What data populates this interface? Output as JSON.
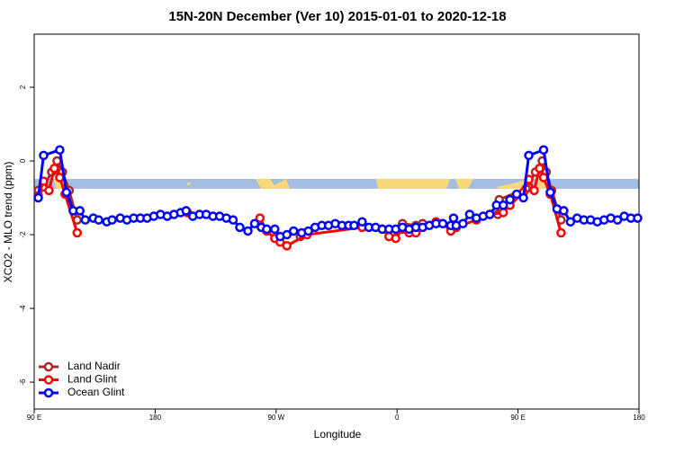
{
  "chart_data": {
    "type": "line",
    "title": "15N-20N December (Ver 10)   2015-01-01 to 2020-12-18",
    "x_label": "Longitude",
    "y_label": "XCO2 - MLO trend (ppm)",
    "xlim": [
      90,
      540
    ],
    "xticks": [
      {
        "value": 90,
        "label": "90 E"
      },
      {
        "value": 180,
        "label": "180"
      },
      {
        "value": 270,
        "label": "90 W"
      },
      {
        "value": 360,
        "label": "0"
      },
      {
        "value": 450,
        "label": "90 E"
      },
      {
        "value": 540,
        "label": "180"
      }
    ],
    "ylim": [
      -6.73,
      3.44
    ],
    "yticks": [
      2,
      0,
      -2,
      -4,
      -6
    ],
    "legend": "bottom-left",
    "series": [
      {
        "name": "Land Nadir",
        "color": "#a52a2a",
        "x": [
          93,
          97,
          103,
          107,
          111,
          116,
          122,
          null,
          288,
          null,
          364,
          374,
          379,
          null,
          435,
          436,
          456,
          463,
          468,
          471,
          475,
          482
        ],
        "values": [
          -0.8,
          -0.7,
          -0.3,
          0.0,
          -0.3,
          -0.8,
          -1.6,
          null,
          -2.05,
          null,
          -1.7,
          -1.75,
          -1.7,
          null,
          -1.45,
          -1.05,
          -0.75,
          -0.3,
          0.0,
          -0.3,
          -0.8,
          -1.6
        ]
      },
      {
        "name": "Land Glint",
        "color": "#ff0000",
        "x": [
          93,
          97,
          101,
          105,
          109,
          113,
          122,
          null,
          204,
          null,
          258,
          263,
          269,
          273,
          278,
          293,
          334,
          349,
          354,
          359,
          364,
          369,
          374,
          389,
          394,
          400,
          404,
          419,
          429,
          439,
          444,
          454,
          458,
          462,
          466,
          469,
          474,
          482
        ],
        "values": [
          -0.95,
          -0.55,
          -0.8,
          -0.2,
          -0.45,
          -0.9,
          -1.95,
          null,
          -1.4,
          null,
          -1.55,
          -1.9,
          -2.1,
          -2.2,
          -2.3,
          -2.0,
          -1.8,
          -1.85,
          -2.05,
          -2.1,
          -1.85,
          -1.95,
          -1.95,
          -1.65,
          -1.7,
          -1.9,
          -1.8,
          -1.6,
          -1.45,
          -1.4,
          -1.2,
          -0.85,
          -0.5,
          -0.8,
          -0.2,
          -0.45,
          -0.9,
          -1.95
        ]
      },
      {
        "name": "Ocean Glint",
        "color": "#0000ff",
        "x": [
          93,
          97,
          109,
          114,
          119,
          124,
          128,
          134,
          138,
          144,
          148,
          154,
          159,
          164,
          169,
          174,
          179,
          184,
          189,
          194,
          199,
          203,
          208,
          213,
          218,
          223,
          228,
          233,
          238,
          243,
          249,
          254,
          259,
          263,
          269,
          273,
          278,
          283,
          289,
          294,
          299,
          304,
          309,
          314,
          319,
          324,
          328,
          334,
          339,
          344,
          349,
          354,
          359,
          364,
          369,
          374,
          379,
          384,
          389,
          394,
          400,
          402,
          404,
          409,
          414,
          419,
          424,
          429,
          434,
          439,
          444,
          449,
          454,
          458,
          469,
          474,
          479,
          484,
          489,
          494,
          499,
          504,
          509,
          514,
          519,
          524,
          529,
          534,
          539
        ],
        "values": [
          -1.0,
          0.15,
          0.3,
          -0.85,
          -1.35,
          -1.35,
          -1.6,
          -1.55,
          -1.6,
          -1.65,
          -1.6,
          -1.55,
          -1.6,
          -1.55,
          -1.55,
          -1.55,
          -1.5,
          -1.45,
          -1.5,
          -1.45,
          -1.4,
          -1.35,
          -1.5,
          -1.45,
          -1.45,
          -1.5,
          -1.5,
          -1.55,
          -1.6,
          -1.8,
          -1.9,
          -1.7,
          -1.8,
          -1.85,
          -1.85,
          -2.05,
          -2.0,
          -1.9,
          -1.95,
          -1.9,
          -1.8,
          -1.75,
          -1.75,
          -1.7,
          -1.75,
          -1.75,
          -1.75,
          -1.65,
          -1.8,
          -1.8,
          -1.85,
          -1.85,
          -1.85,
          -1.8,
          -1.85,
          -1.8,
          -1.8,
          -1.75,
          -1.7,
          -1.7,
          -1.75,
          -1.55,
          -1.75,
          -1.7,
          -1.45,
          -1.55,
          -1.5,
          -1.45,
          -1.2,
          -1.2,
          -1.05,
          -0.9,
          -1.0,
          0.15,
          0.3,
          -0.85,
          -1.3,
          -1.35,
          -1.65,
          -1.55,
          -1.6,
          -1.6,
          -1.65,
          -1.6,
          -1.55,
          -1.6,
          -1.5,
          -1.55,
          -1.55
        ]
      }
    ]
  }
}
